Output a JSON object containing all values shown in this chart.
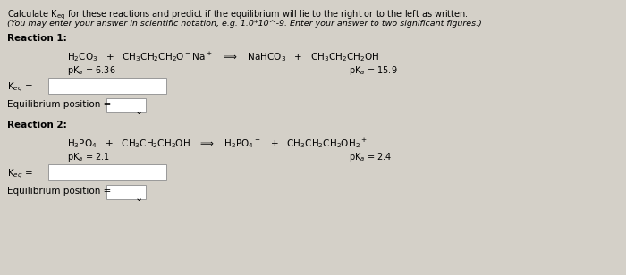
{
  "bg_color": "#d4d0c8",
  "fs_title": 7.0,
  "fs_italic": 6.8,
  "fs_bold": 7.5,
  "fs_eq": 7.5,
  "fs_pka": 7.0,
  "fs_keq": 7.5,
  "fs_arrow": 5.0,
  "title_line1": "Calculate K",
  "title_sub": "eq",
  "title_rest": " for these reactions and predict if the equilibrium will lie to the right or to the left as written.",
  "title_line2": "(You may enter your answer in scientific notation, e.g. 1.0*10^-9. Enter your answer to two significant figures.)",
  "r1_label": "Reaction 1:",
  "r2_label": "Reaction 2:",
  "r1_pka1": "pK",
  "r1_pka1_sub": "a",
  "r1_pka1_val": " = 6.36",
  "r1_pka2_val": " = 15.9",
  "r2_pka1_val": " = 2.1",
  "r2_pka2_val": " = 2.4",
  "keq_label": "K",
  "eq_label": "eq",
  "eq_suffix": " =",
  "eq_pos_label": "Equilibrium position =",
  "box_color": "white",
  "box_edge": "#999999"
}
